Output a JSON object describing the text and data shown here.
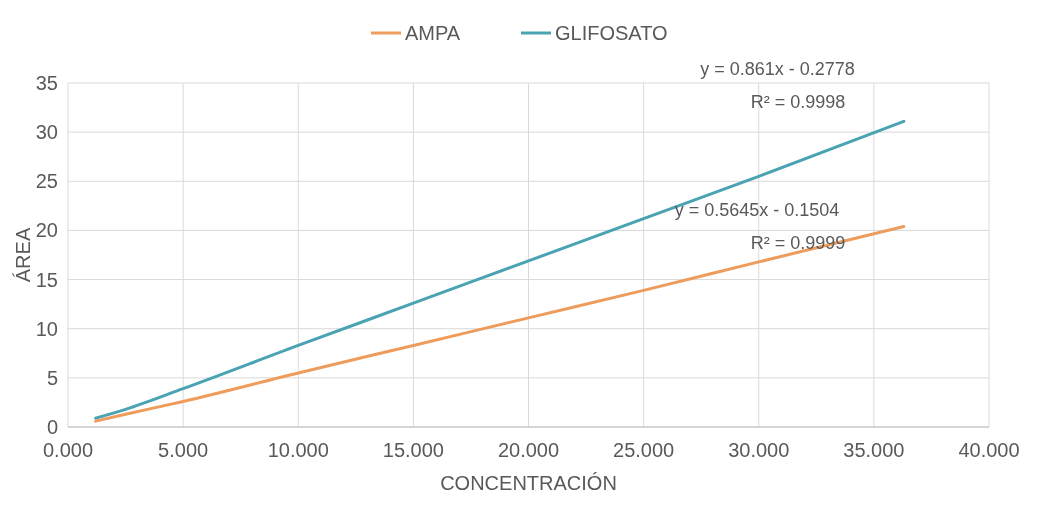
{
  "chart_data": {
    "type": "line",
    "xlabel": "CONCENTRACIÓN",
    "ylabel": "ÁREA",
    "series": [
      {
        "name": "AMPA",
        "color": "#ee9c5c",
        "x": [
          1.2,
          2.5,
          5,
          10,
          15,
          20,
          25,
          30,
          36.3
        ],
        "values": [
          0.6,
          1.3,
          2.6,
          5.5,
          8.3,
          11.1,
          13.9,
          16.8,
          20.4
        ]
      },
      {
        "name": "GLIFOSATO",
        "color": "#4aa3b3",
        "x": [
          1.2,
          2.5,
          5,
          10,
          15,
          20,
          25,
          30,
          36.3
        ],
        "values": [
          0.9,
          1.8,
          3.9,
          8.3,
          12.6,
          16.9,
          21.2,
          25.5,
          31.1
        ]
      }
    ],
    "xlim": [
      0,
      40
    ],
    "xticks": [
      {
        "value": 0,
        "label": "0.000"
      },
      {
        "value": 5,
        "label": "5.000"
      },
      {
        "value": 10,
        "label": "10.000"
      },
      {
        "value": 15,
        "label": "15.000"
      },
      {
        "value": 20,
        "label": "20.000"
      },
      {
        "value": 25,
        "label": "25.000"
      },
      {
        "value": 30,
        "label": "30.000"
      },
      {
        "value": 35,
        "label": "35.000"
      },
      {
        "value": 40,
        "label": "40.000"
      }
    ],
    "ylim": [
      0,
      35
    ],
    "yticks": [
      0,
      5,
      10,
      15,
      20,
      25,
      30,
      35
    ],
    "grid": true,
    "legend": "top",
    "annotations": [
      "y = 0.861x - 0.2778",
      "R² = 0.9998",
      "y = 0.5645x - 0.1504",
      "R² = 0.9999"
    ]
  }
}
